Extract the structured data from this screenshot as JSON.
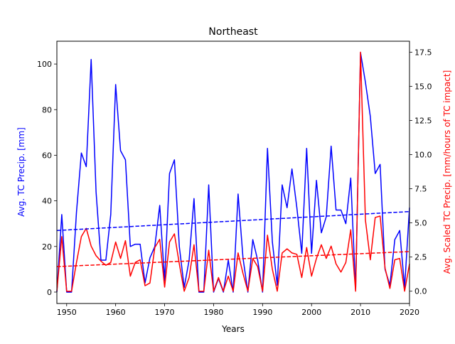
{
  "chart_data": {
    "type": "line",
    "title": "Northeast",
    "xlabel": "Years",
    "ylabel_left": "Avg. TC Precip. [mm]",
    "ylabel_right": "Avg. Scaled TC Precip. [mm/hours of TC impact]",
    "xlim": [
      1948,
      2020
    ],
    "ylim_left": [
      -5,
      110
    ],
    "ylim_right": [
      -0.9,
      18.3
    ],
    "x_ticks": [
      1950,
      1960,
      1970,
      1980,
      1990,
      2000,
      2010,
      2020
    ],
    "y_ticks_left": [
      0,
      20,
      40,
      60,
      80,
      100
    ],
    "y_ticks_right": [
      0.0,
      2.5,
      5.0,
      7.5,
      10.0,
      12.5,
      15.0,
      17.5
    ],
    "y_tick_labels_right": [
      "0.0",
      "2.5",
      "5.0",
      "7.5",
      "10.0",
      "12.5",
      "15.0",
      "17.5"
    ],
    "grid": false,
    "colors": {
      "left": "#0000ff",
      "right": "#ff0000"
    },
    "x": [
      1948,
      1949,
      1950,
      1951,
      1952,
      1953,
      1954,
      1955,
      1956,
      1957,
      1958,
      1959,
      1960,
      1961,
      1962,
      1963,
      1964,
      1965,
      1966,
      1967,
      1968,
      1969,
      1970,
      1971,
      1972,
      1973,
      1974,
      1975,
      1976,
      1977,
      1978,
      1979,
      1980,
      1981,
      1982,
      1983,
      1984,
      1985,
      1986,
      1987,
      1988,
      1989,
      1990,
      1991,
      1992,
      1993,
      1994,
      1995,
      1996,
      1997,
      1998,
      1999,
      2000,
      2001,
      2002,
      2003,
      2004,
      2005,
      2006,
      2007,
      2008,
      2009,
      2010,
      2011,
      2012,
      2013,
      2014,
      2015,
      2016,
      2017,
      2018,
      2019,
      2020
    ],
    "series": [
      {
        "axis": "left",
        "style": "solid",
        "color": "#0000ff",
        "values": [
          0,
          34,
          0,
          0,
          35,
          61,
          55,
          102,
          44,
          14,
          14,
          34,
          91,
          62,
          58,
          20,
          21,
          21,
          4,
          15,
          20,
          38,
          5,
          52,
          58,
          20,
          2,
          14,
          41,
          0,
          0,
          47,
          0,
          6,
          0,
          14,
          0,
          43,
          15,
          0,
          23,
          14,
          0,
          63,
          22,
          3,
          47,
          37,
          54,
          37,
          17,
          63,
          17,
          49,
          26,
          33,
          64,
          36,
          36,
          30,
          50,
          1,
          105,
          92,
          77,
          52,
          56,
          10,
          3,
          23,
          27,
          2,
          37
        ]
      },
      {
        "axis": "right",
        "style": "solid",
        "color": "#ff0000",
        "values": [
          0.0,
          4.0,
          0.0,
          0.0,
          2.1,
          4.0,
          4.6,
          3.3,
          2.6,
          2.2,
          1.9,
          2.1,
          3.6,
          2.4,
          3.7,
          1.1,
          2.1,
          2.3,
          0.4,
          0.6,
          3.2,
          3.8,
          0.3,
          3.6,
          4.2,
          2.0,
          0.0,
          1.0,
          3.4,
          0.0,
          0.0,
          3.0,
          0.0,
          1.0,
          0.0,
          1.1,
          0.0,
          2.8,
          1.3,
          0.0,
          2.4,
          1.8,
          0.0,
          4.1,
          1.6,
          0.0,
          2.8,
          3.1,
          2.8,
          2.7,
          1.0,
          3.2,
          1.1,
          2.4,
          3.4,
          2.4,
          3.3,
          2.0,
          1.4,
          2.1,
          4.5,
          0.0,
          17.5,
          5.2,
          2.3,
          5.4,
          5.5,
          1.7,
          0.2,
          2.3,
          2.4,
          0.0,
          2.0
        ]
      },
      {
        "axis": "left",
        "style": "dashed",
        "color": "#0000ff",
        "x": [
          1948,
          2020
        ],
        "values": [
          27.0,
          35.3
        ]
      },
      {
        "axis": "right",
        "style": "dashed",
        "color": "#ff0000",
        "x": [
          1948,
          2020
        ],
        "values": [
          1.8,
          2.9
        ]
      }
    ]
  }
}
